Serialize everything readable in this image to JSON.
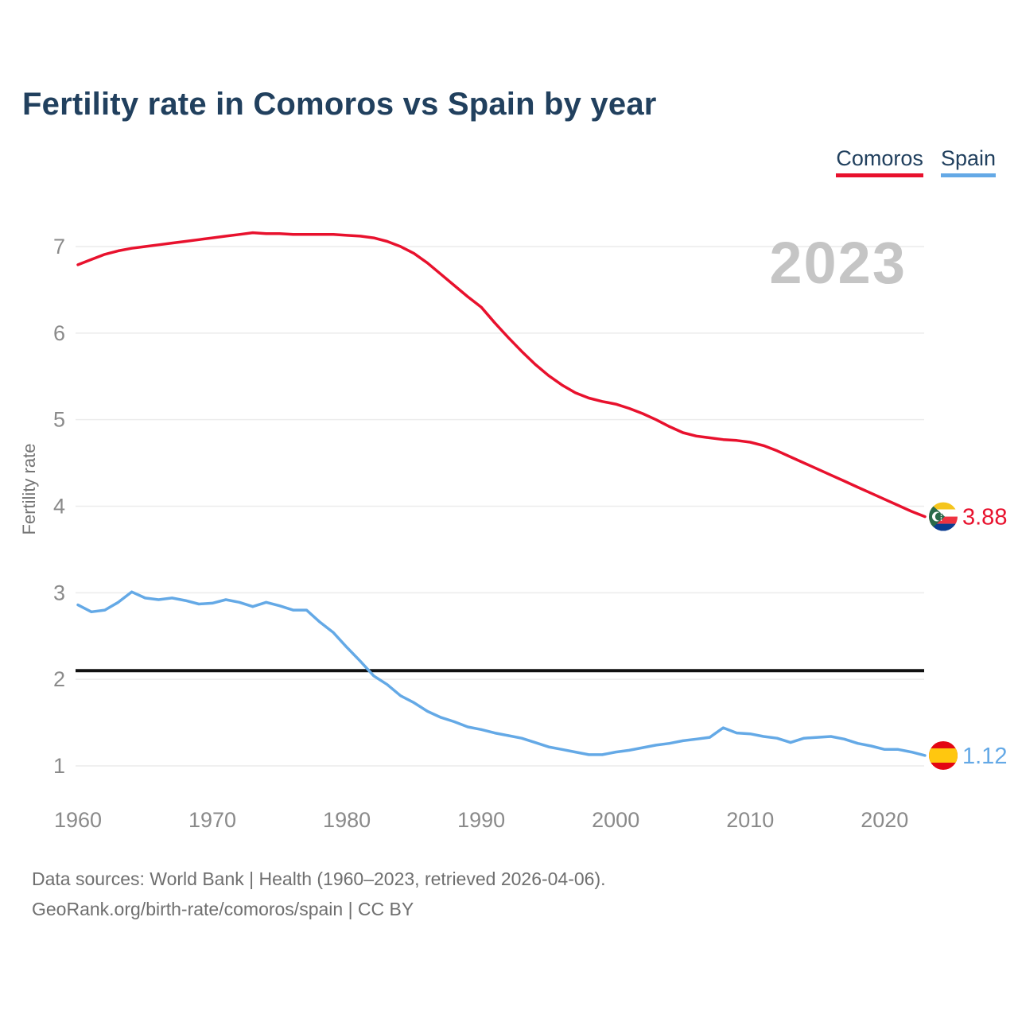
{
  "page": {
    "title": "Fertility rate in Comoros vs Spain by year",
    "watermark": "2023",
    "footer_line1": "Data sources: World Bank | Health (1960–2023, retrieved 2026-04-06).",
    "footer_line2": "GeoRank.org/birth-rate/comoros/spain | CC BY"
  },
  "colors": {
    "comoros": "#e8112d",
    "spain": "#64a9e6",
    "title_text": "#21405e",
    "axis_text": "#8a8a8a",
    "gridline": "#ececec",
    "watermark": "#c5c5c5",
    "reference_line": "#111111",
    "footer_text": "#6f6f6f"
  },
  "chart_data": {
    "type": "line",
    "title": "Fertility rate in Comoros vs Spain by year",
    "xlabel": "",
    "ylabel": "Fertility rate",
    "xlim": [
      1960,
      2023
    ],
    "ylim": [
      1,
      7.35
    ],
    "x_ticks": [
      1960,
      1970,
      1980,
      1990,
      2000,
      2010,
      2020
    ],
    "y_ticks": [
      1,
      2,
      3,
      4,
      5,
      6,
      7
    ],
    "grid": "horizontal",
    "legend_position": "top-right",
    "reference_line": {
      "value": 2.1,
      "color": "#111111"
    },
    "x": [
      1960,
      1961,
      1962,
      1963,
      1964,
      1965,
      1966,
      1967,
      1968,
      1969,
      1970,
      1971,
      1972,
      1973,
      1974,
      1975,
      1976,
      1977,
      1978,
      1979,
      1980,
      1981,
      1982,
      1983,
      1984,
      1985,
      1986,
      1987,
      1988,
      1989,
      1990,
      1991,
      1992,
      1993,
      1994,
      1995,
      1996,
      1997,
      1998,
      1999,
      2000,
      2001,
      2002,
      2003,
      2004,
      2005,
      2006,
      2007,
      2008,
      2009,
      2010,
      2011,
      2012,
      2013,
      2014,
      2015,
      2016,
      2017,
      2018,
      2019,
      2020,
      2021,
      2022,
      2023
    ],
    "series": [
      {
        "name": "Comoros",
        "flag": "comoros",
        "color": "#e8112d",
        "end_label": "3.88",
        "end_value": 3.88,
        "values": [
          6.79,
          6.85,
          6.91,
          6.95,
          6.98,
          7.0,
          7.02,
          7.04,
          7.06,
          7.08,
          7.1,
          7.12,
          7.14,
          7.16,
          7.15,
          7.15,
          7.14,
          7.14,
          7.14,
          7.14,
          7.13,
          7.12,
          7.1,
          7.06,
          7.0,
          6.92,
          6.81,
          6.68,
          6.55,
          6.42,
          6.3,
          6.12,
          5.95,
          5.79,
          5.64,
          5.51,
          5.4,
          5.31,
          5.25,
          5.21,
          5.18,
          5.13,
          5.07,
          5.0,
          4.92,
          4.85,
          4.81,
          4.79,
          4.77,
          4.76,
          4.74,
          4.7,
          4.64,
          4.57,
          4.5,
          4.43,
          4.36,
          4.29,
          4.22,
          4.15,
          4.08,
          4.01,
          3.94,
          3.88
        ]
      },
      {
        "name": "Spain",
        "flag": "spain",
        "color": "#64a9e6",
        "end_label": "1.12",
        "end_value": 1.12,
        "values": [
          2.86,
          2.78,
          2.8,
          2.89,
          3.01,
          2.94,
          2.92,
          2.94,
          2.91,
          2.87,
          2.88,
          2.92,
          2.89,
          2.84,
          2.89,
          2.85,
          2.8,
          2.8,
          2.66,
          2.54,
          2.37,
          2.21,
          2.04,
          1.94,
          1.81,
          1.73,
          1.63,
          1.56,
          1.51,
          1.45,
          1.42,
          1.38,
          1.35,
          1.32,
          1.27,
          1.22,
          1.19,
          1.16,
          1.13,
          1.13,
          1.16,
          1.18,
          1.21,
          1.24,
          1.26,
          1.29,
          1.31,
          1.33,
          1.44,
          1.38,
          1.37,
          1.34,
          1.32,
          1.27,
          1.32,
          1.33,
          1.34,
          1.31,
          1.26,
          1.23,
          1.19,
          1.19,
          1.16,
          1.12
        ]
      }
    ]
  }
}
